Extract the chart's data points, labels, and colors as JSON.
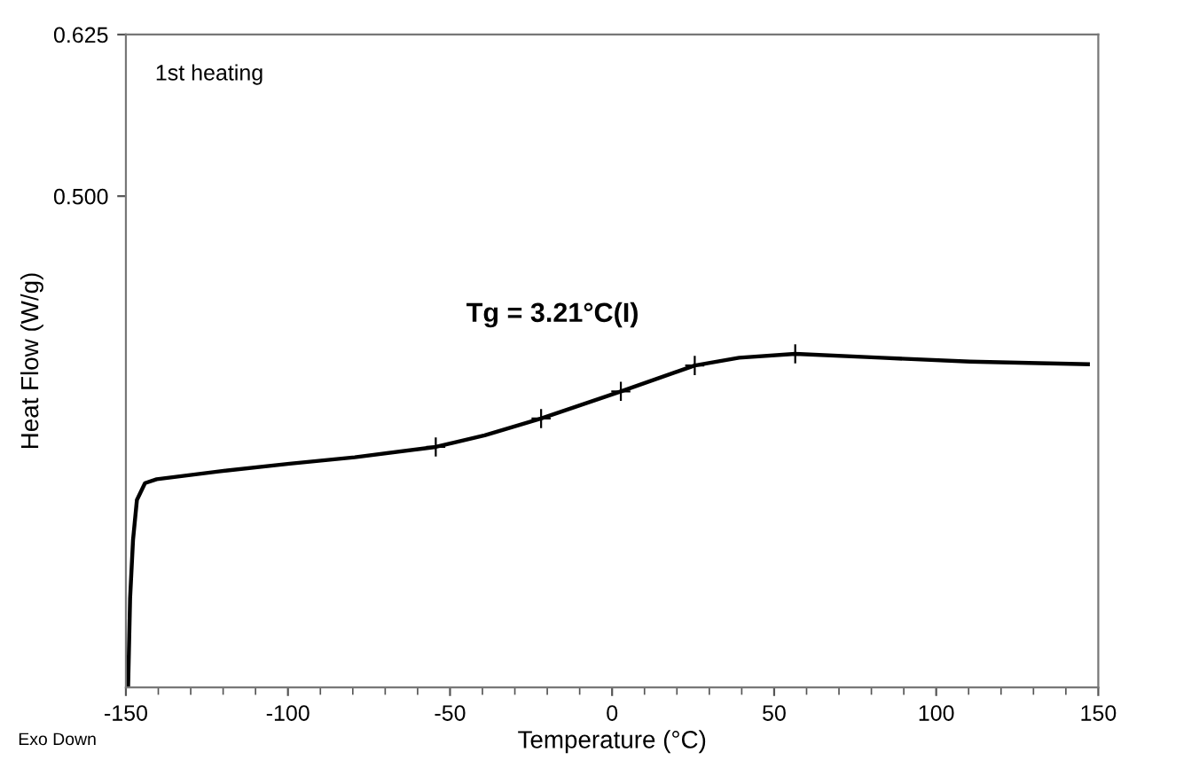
{
  "chart_data": {
    "type": "line",
    "xlabel": "Temperature (°C)",
    "ylabel": "Heat Flow (W/g)",
    "xlim": [
      -150,
      150
    ],
    "xticks": [
      -150,
      -100,
      -50,
      0,
      50,
      100,
      150
    ],
    "ylim": [
      0.12,
      0.625
    ],
    "yticks": [
      {
        "value": 0.625,
        "label": "0.625"
      },
      {
        "value": 0.5,
        "label": "0.500"
      }
    ],
    "grid": false,
    "legend": false,
    "series": [
      {
        "color": "#000000",
        "line_style": "solid",
        "marker": "none",
        "x": [
          -149.3,
          -148.7,
          -147.8,
          -146.6,
          -144.1,
          -140.5,
          -121.4,
          -99.5,
          -79.4,
          -54.4,
          -39.3,
          -21.9,
          2.7,
          25.5,
          39.2,
          56.5,
          83,
          110.4,
          128.6,
          146.8
        ],
        "values": [
          0.122,
          0.189,
          0.234,
          0.265,
          0.278,
          0.281,
          0.287,
          0.293,
          0.298,
          0.306,
          0.315,
          0.328,
          0.349,
          0.369,
          0.375,
          0.378,
          0.375,
          0.372,
          0.371,
          0.37
        ]
      },
      {
        "type": "scatter",
        "color": "#000000",
        "marker": "cross",
        "x": [
          -54.4,
          -21.9,
          2.7,
          25.5,
          56.5
        ],
        "values": [
          0.306,
          0.328,
          0.349,
          0.369,
          0.378
        ]
      }
    ],
    "annotations": [
      "1st heating",
      "Tg = 3.21°C(I)",
      "Exo Down"
    ]
  }
}
